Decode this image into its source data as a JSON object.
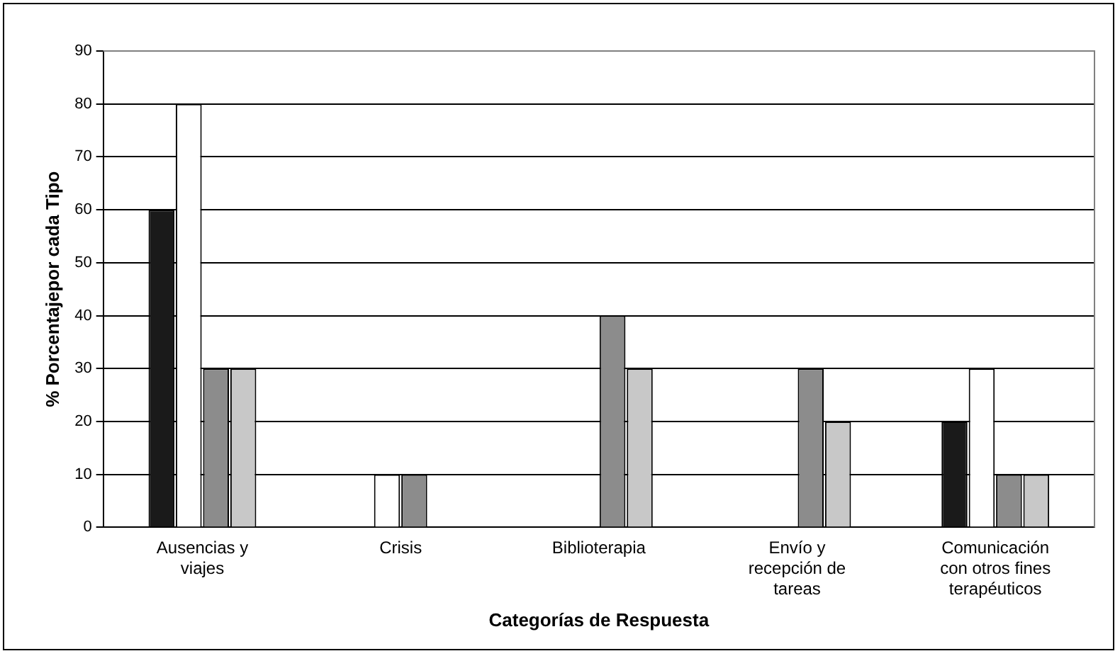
{
  "chart_data": {
    "type": "bar",
    "xlabel": "Categorías de Respuesta",
    "ylabel": "% Porcentajepor cada Tipo",
    "categories": [
      "Ausencias y viajes",
      "Crisis",
      "Biblioterapia",
      "Envío y recepción de tareas",
      "Comunicación con otros fines terapéuticos"
    ],
    "series": [
      {
        "color": "#1a1a1a",
        "values": [
          60,
          0,
          0,
          0,
          20
        ]
      },
      {
        "color": "#ffffff",
        "values": [
          80,
          10,
          0,
          0,
          30
        ]
      },
      {
        "color": "#8c8c8c",
        "values": [
          30,
          10,
          40,
          30,
          10
        ]
      },
      {
        "color": "#c8c8c8",
        "values": [
          30,
          0,
          30,
          20,
          10
        ]
      }
    ],
    "ylim": [
      0,
      90
    ],
    "yticks": [
      0,
      10,
      20,
      30,
      40,
      50,
      60,
      70,
      80,
      90
    ],
    "grid": "y",
    "legend": false
  }
}
